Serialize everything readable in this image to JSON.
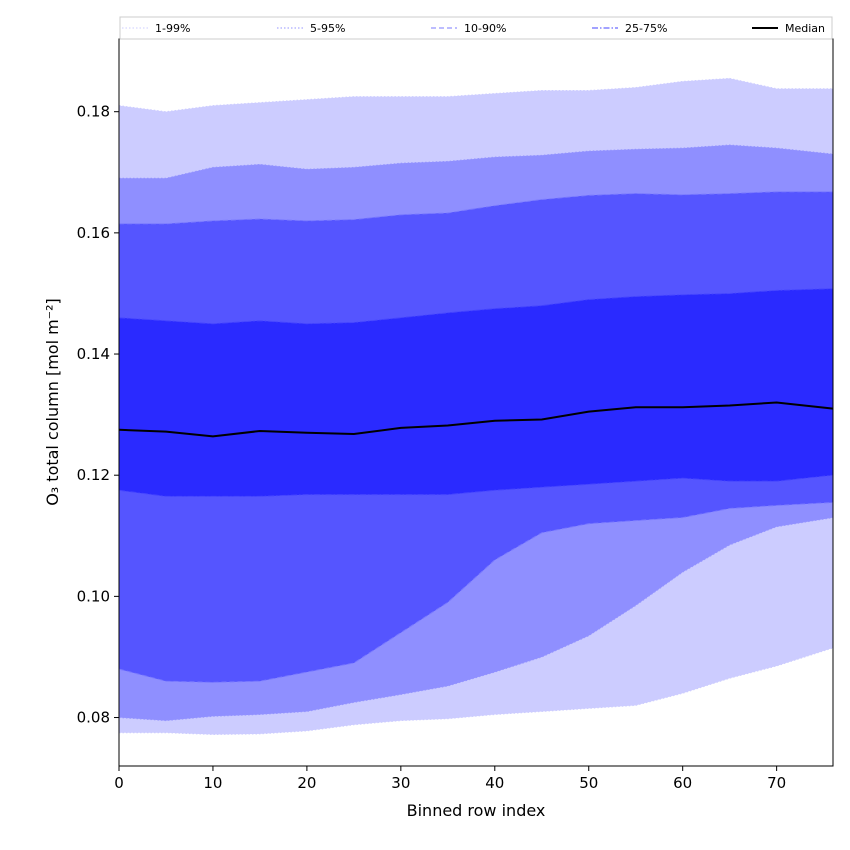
{
  "chart_data": {
    "type": "area",
    "title": "",
    "xlabel": "Binned row index",
    "ylabel": "O₃ total column [mol m⁻²]",
    "xlim": [
      0,
      76
    ],
    "ylim": [
      0.072,
      0.192
    ],
    "grid": false,
    "legend_position": "top",
    "x_ticks": [
      0,
      10,
      20,
      30,
      40,
      50,
      60,
      70
    ],
    "x_tick_labels": [
      "0",
      "10",
      "20",
      "30",
      "40",
      "50",
      "60",
      "70"
    ],
    "y_ticks": [
      0.08,
      0.1,
      0.12,
      0.14,
      0.16,
      0.18
    ],
    "y_tick_labels": [
      "0.08",
      "0.10",
      "0.12",
      "0.14",
      "0.16",
      "0.18"
    ],
    "x": [
      0,
      5,
      10,
      15,
      20,
      25,
      30,
      35,
      40,
      45,
      50,
      55,
      60,
      65,
      70,
      76
    ],
    "series": [
      {
        "name": "1-99%",
        "style": "dotted",
        "line_color": "#ccccff",
        "fill_color": "#ccccff",
        "lower": [
          0.0775,
          0.0775,
          0.0772,
          0.0773,
          0.0778,
          0.0788,
          0.0795,
          0.0798,
          0.0805,
          0.081,
          0.0815,
          0.082,
          0.084,
          0.0865,
          0.0885,
          0.0915
        ],
        "upper": [
          0.181,
          0.18,
          0.181,
          0.1815,
          0.182,
          0.1825,
          0.1825,
          0.1825,
          0.183,
          0.1835,
          0.1835,
          0.184,
          0.185,
          0.1855,
          0.1838,
          0.1838
        ]
      },
      {
        "name": "5-95%",
        "style": "dotted",
        "line_color": "#9494ff",
        "fill_color": "#8f8fff",
        "lower": [
          0.08,
          0.0795,
          0.0802,
          0.0805,
          0.081,
          0.0825,
          0.0838,
          0.0852,
          0.0875,
          0.09,
          0.0935,
          0.0985,
          0.104,
          0.1085,
          0.1115,
          0.113
        ],
        "upper": [
          0.169,
          0.169,
          0.1708,
          0.1713,
          0.1705,
          0.1708,
          0.1715,
          0.1718,
          0.1725,
          0.1728,
          0.1735,
          0.1738,
          0.174,
          0.1745,
          0.174,
          0.173
        ]
      },
      {
        "name": "10-90%",
        "style": "dashed",
        "line_color": "#7b7bff",
        "fill_color": "#5555ff",
        "lower": [
          0.088,
          0.086,
          0.0858,
          0.086,
          0.0875,
          0.089,
          0.094,
          0.099,
          0.106,
          0.1105,
          0.112,
          0.1125,
          0.113,
          0.1145,
          0.115,
          0.1155
        ],
        "upper": [
          0.1615,
          0.1615,
          0.162,
          0.1623,
          0.162,
          0.1622,
          0.163,
          0.1633,
          0.1645,
          0.1655,
          0.1662,
          0.1665,
          0.1663,
          0.1665,
          0.1668,
          0.1668
        ]
      },
      {
        "name": "25-75%",
        "style": "dashdot",
        "line_color": "#4646ff",
        "fill_color": "#2a2aff",
        "lower": [
          0.1175,
          0.1165,
          0.1165,
          0.1165,
          0.1168,
          0.1168,
          0.1168,
          0.1168,
          0.1175,
          0.118,
          0.1185,
          0.119,
          0.1195,
          0.119,
          0.119,
          0.12
        ],
        "upper": [
          0.146,
          0.1455,
          0.145,
          0.1455,
          0.145,
          0.1452,
          0.146,
          0.1468,
          0.1475,
          0.148,
          0.149,
          0.1495,
          0.1498,
          0.15,
          0.1505,
          0.1508
        ]
      },
      {
        "name": "Median",
        "style": "solid",
        "line_color": "#000000",
        "values": [
          0.1275,
          0.1272,
          0.1264,
          0.1273,
          0.127,
          0.1268,
          0.1278,
          0.1282,
          0.129,
          0.1292,
          0.1305,
          0.1312,
          0.1312,
          0.1315,
          0.132,
          0.131
        ]
      }
    ]
  }
}
